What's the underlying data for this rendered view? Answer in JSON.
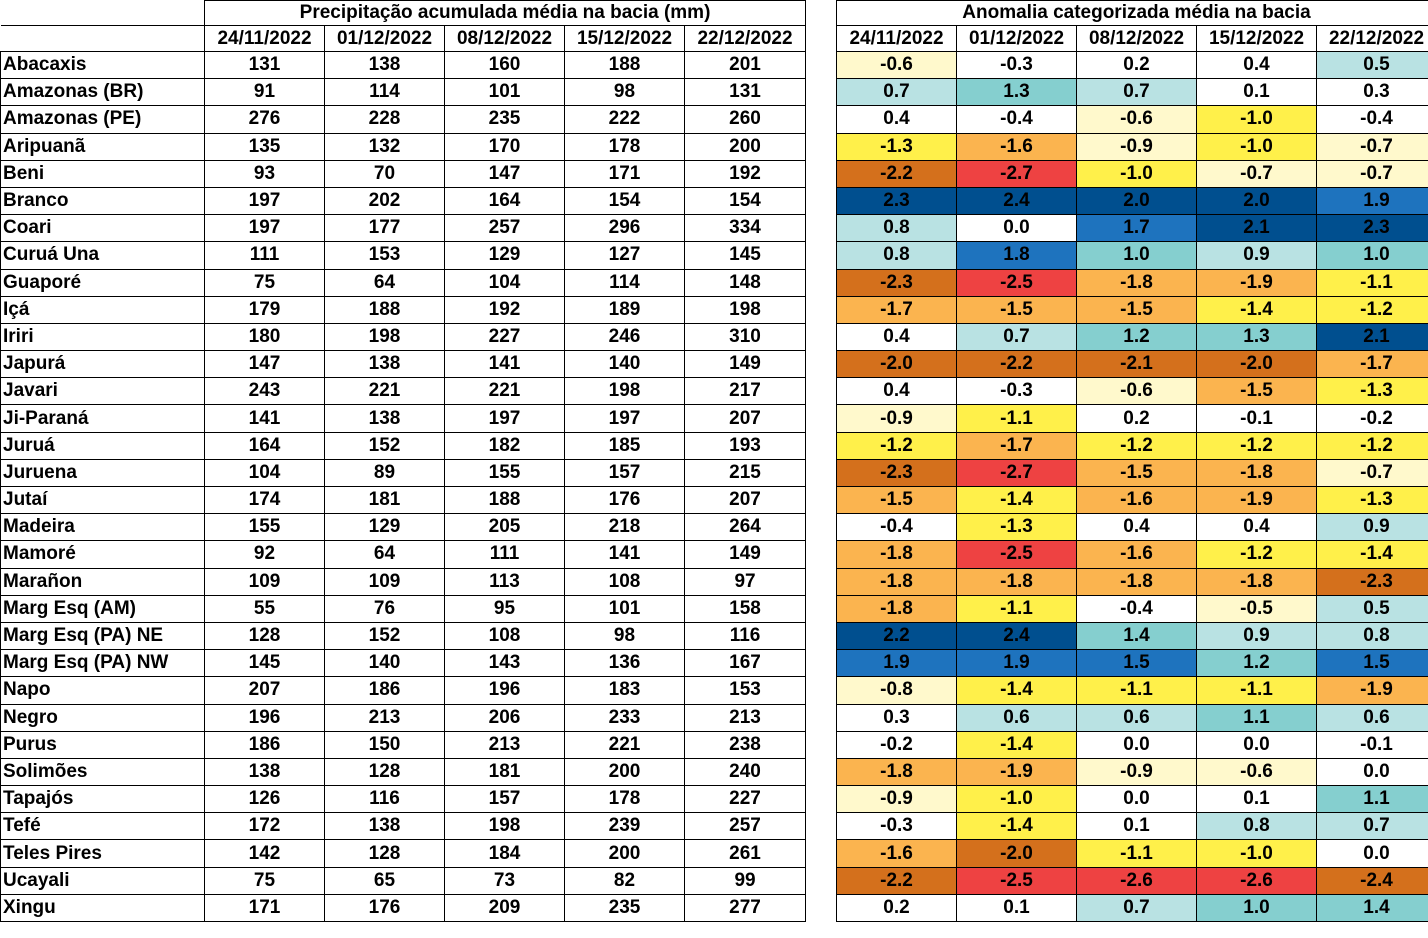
{
  "left_table": {
    "title": "Precipitação acumulada média na bacia (mm)",
    "dates": [
      "24/11/2022",
      "01/12/2022",
      "08/12/2022",
      "15/12/2022",
      "22/12/2022"
    ]
  },
  "right_table": {
    "title": "Anomalia categorizada média na bacia",
    "dates": [
      "24/11/2022",
      "01/12/2022",
      "08/12/2022",
      "15/12/2022",
      "22/12/2022"
    ]
  },
  "colors": {
    "W": "#FFFFFF",
    "PY": "#FFF9CC",
    "Y": "#FFF04A",
    "O": "#FBB44F",
    "DO": "#D4701C",
    "R": "#EE4242",
    "LC": "#B9E2E3",
    "T": "#85CFCF",
    "B": "#1E73BE",
    "DB": "#004F8F"
  },
  "rows": [
    {
      "name": "Abacaxis",
      "precip": [
        "131",
        "138",
        "160",
        "188",
        "201"
      ],
      "anom": [
        "-0.6",
        "-0.3",
        "0.2",
        "0.4",
        "0.5"
      ],
      "cat": [
        "PY",
        "W",
        "W",
        "W",
        "LC"
      ]
    },
    {
      "name": "Amazonas (BR)",
      "precip": [
        "91",
        "114",
        "101",
        "98",
        "131"
      ],
      "anom": [
        "0.7",
        "1.3",
        "0.7",
        "0.1",
        "0.3"
      ],
      "cat": [
        "LC",
        "T",
        "LC",
        "W",
        "W"
      ]
    },
    {
      "name": "Amazonas (PE)",
      "precip": [
        "276",
        "228",
        "235",
        "222",
        "260"
      ],
      "anom": [
        "0.4",
        "-0.4",
        "-0.6",
        "-1.0",
        "-0.4"
      ],
      "cat": [
        "W",
        "W",
        "PY",
        "Y",
        "W"
      ]
    },
    {
      "name": "Aripuanã",
      "precip": [
        "135",
        "132",
        "170",
        "178",
        "200"
      ],
      "anom": [
        "-1.3",
        "-1.6",
        "-0.9",
        "-1.0",
        "-0.7"
      ],
      "cat": [
        "Y",
        "O",
        "PY",
        "Y",
        "PY"
      ]
    },
    {
      "name": "Beni",
      "precip": [
        "93",
        "70",
        "147",
        "171",
        "192"
      ],
      "anom": [
        "-2.2",
        "-2.7",
        "-1.0",
        "-0.7",
        "-0.7"
      ],
      "cat": [
        "DO",
        "R",
        "Y",
        "PY",
        "PY"
      ]
    },
    {
      "name": "Branco",
      "precip": [
        "197",
        "202",
        "164",
        "154",
        "154"
      ],
      "anom": [
        "2.3",
        "2.4",
        "2.0",
        "2.0",
        "1.9"
      ],
      "cat": [
        "DB",
        "DB",
        "DB",
        "DB",
        "B"
      ]
    },
    {
      "name": "Coari",
      "precip": [
        "197",
        "177",
        "257",
        "296",
        "334"
      ],
      "anom": [
        "0.8",
        "0.0",
        "1.7",
        "2.1",
        "2.3"
      ],
      "cat": [
        "LC",
        "W",
        "B",
        "DB",
        "DB"
      ]
    },
    {
      "name": "Curuá Una",
      "precip": [
        "111",
        "153",
        "129",
        "127",
        "145"
      ],
      "anom": [
        "0.8",
        "1.8",
        "1.0",
        "0.9",
        "1.0"
      ],
      "cat": [
        "LC",
        "B",
        "T",
        "LC",
        "T"
      ]
    },
    {
      "name": "Guaporé",
      "precip": [
        "75",
        "64",
        "104",
        "114",
        "148"
      ],
      "anom": [
        "-2.3",
        "-2.5",
        "-1.8",
        "-1.9",
        "-1.1"
      ],
      "cat": [
        "DO",
        "R",
        "O",
        "O",
        "Y"
      ]
    },
    {
      "name": "Içá",
      "precip": [
        "179",
        "188",
        "192",
        "189",
        "198"
      ],
      "anom": [
        "-1.7",
        "-1.5",
        "-1.5",
        "-1.4",
        "-1.2"
      ],
      "cat": [
        "O",
        "O",
        "O",
        "Y",
        "Y"
      ]
    },
    {
      "name": "Iriri",
      "precip": [
        "180",
        "198",
        "227",
        "246",
        "310"
      ],
      "anom": [
        "0.4",
        "0.7",
        "1.2",
        "1.3",
        "2.1"
      ],
      "cat": [
        "W",
        "LC",
        "T",
        "T",
        "DB"
      ]
    },
    {
      "name": "Japurá",
      "precip": [
        "147",
        "138",
        "141",
        "140",
        "149"
      ],
      "anom": [
        "-2.0",
        "-2.2",
        "-2.1",
        "-2.0",
        "-1.7"
      ],
      "cat": [
        "DO",
        "DO",
        "DO",
        "DO",
        "O"
      ]
    },
    {
      "name": "Javari",
      "precip": [
        "243",
        "221",
        "221",
        "198",
        "217"
      ],
      "anom": [
        "0.4",
        "-0.3",
        "-0.6",
        "-1.5",
        "-1.3"
      ],
      "cat": [
        "W",
        "W",
        "PY",
        "O",
        "Y"
      ]
    },
    {
      "name": "Ji-Paraná",
      "precip": [
        "141",
        "138",
        "197",
        "197",
        "207"
      ],
      "anom": [
        "-0.9",
        "-1.1",
        "0.2",
        "-0.1",
        "-0.2"
      ],
      "cat": [
        "PY",
        "Y",
        "W",
        "W",
        "W"
      ]
    },
    {
      "name": "Juruá",
      "precip": [
        "164",
        "152",
        "182",
        "185",
        "193"
      ],
      "anom": [
        "-1.2",
        "-1.7",
        "-1.2",
        "-1.2",
        "-1.2"
      ],
      "cat": [
        "Y",
        "O",
        "Y",
        "Y",
        "Y"
      ]
    },
    {
      "name": "Juruena",
      "precip": [
        "104",
        "89",
        "155",
        "157",
        "215"
      ],
      "anom": [
        "-2.3",
        "-2.7",
        "-1.5",
        "-1.8",
        "-0.7"
      ],
      "cat": [
        "DO",
        "R",
        "O",
        "O",
        "PY"
      ]
    },
    {
      "name": "Jutaí",
      "precip": [
        "174",
        "181",
        "188",
        "176",
        "207"
      ],
      "anom": [
        "-1.5",
        "-1.4",
        "-1.6",
        "-1.9",
        "-1.3"
      ],
      "cat": [
        "O",
        "Y",
        "O",
        "O",
        "Y"
      ]
    },
    {
      "name": "Madeira",
      "precip": [
        "155",
        "129",
        "205",
        "218",
        "264"
      ],
      "anom": [
        "-0.4",
        "-1.3",
        "0.4",
        "0.4",
        "0.9"
      ],
      "cat": [
        "W",
        "Y",
        "W",
        "W",
        "LC"
      ]
    },
    {
      "name": "Mamoré",
      "precip": [
        "92",
        "64",
        "111",
        "141",
        "149"
      ],
      "anom": [
        "-1.8",
        "-2.5",
        "-1.6",
        "-1.2",
        "-1.4"
      ],
      "cat": [
        "O",
        "R",
        "O",
        "Y",
        "Y"
      ]
    },
    {
      "name": "Marañon",
      "precip": [
        "109",
        "109",
        "113",
        "108",
        "97"
      ],
      "anom": [
        "-1.8",
        "-1.8",
        "-1.8",
        "-1.8",
        "-2.3"
      ],
      "cat": [
        "O",
        "O",
        "O",
        "O",
        "DO"
      ]
    },
    {
      "name": "Marg Esq (AM)",
      "precip": [
        "55",
        "76",
        "95",
        "101",
        "158"
      ],
      "anom": [
        "-1.8",
        "-1.1",
        "-0.4",
        "-0.5",
        "0.5"
      ],
      "cat": [
        "O",
        "Y",
        "W",
        "PY",
        "LC"
      ]
    },
    {
      "name": "Marg Esq (PA) NE",
      "precip": [
        "128",
        "152",
        "108",
        "98",
        "116"
      ],
      "anom": [
        "2.2",
        "2.4",
        "1.4",
        "0.9",
        "0.8"
      ],
      "cat": [
        "DB",
        "DB",
        "T",
        "LC",
        "LC"
      ]
    },
    {
      "name": "Marg Esq (PA) NW",
      "precip": [
        "145",
        "140",
        "143",
        "136",
        "167"
      ],
      "anom": [
        "1.9",
        "1.9",
        "1.5",
        "1.2",
        "1.5"
      ],
      "cat": [
        "B",
        "B",
        "B",
        "T",
        "B"
      ]
    },
    {
      "name": "Napo",
      "precip": [
        "207",
        "186",
        "196",
        "183",
        "153"
      ],
      "anom": [
        "-0.8",
        "-1.4",
        "-1.1",
        "-1.1",
        "-1.9"
      ],
      "cat": [
        "PY",
        "Y",
        "Y",
        "Y",
        "O"
      ]
    },
    {
      "name": "Negro",
      "precip": [
        "196",
        "213",
        "206",
        "233",
        "213"
      ],
      "anom": [
        "0.3",
        "0.6",
        "0.6",
        "1.1",
        "0.6"
      ],
      "cat": [
        "W",
        "LC",
        "LC",
        "T",
        "LC"
      ]
    },
    {
      "name": "Purus",
      "precip": [
        "186",
        "150",
        "213",
        "221",
        "238"
      ],
      "anom": [
        "-0.2",
        "-1.4",
        "0.0",
        "0.0",
        "-0.1"
      ],
      "cat": [
        "W",
        "Y",
        "W",
        "W",
        "W"
      ]
    },
    {
      "name": "Solimões",
      "precip": [
        "138",
        "128",
        "181",
        "200",
        "240"
      ],
      "anom": [
        "-1.8",
        "-1.9",
        "-0.9",
        "-0.6",
        "0.0"
      ],
      "cat": [
        "O",
        "O",
        "PY",
        "PY",
        "W"
      ]
    },
    {
      "name": "Tapajós",
      "precip": [
        "126",
        "116",
        "157",
        "178",
        "227"
      ],
      "anom": [
        "-0.9",
        "-1.0",
        "0.0",
        "0.1",
        "1.1"
      ],
      "cat": [
        "PY",
        "Y",
        "W",
        "W",
        "T"
      ]
    },
    {
      "name": "Tefé",
      "precip": [
        "172",
        "138",
        "198",
        "239",
        "257"
      ],
      "anom": [
        "-0.3",
        "-1.4",
        "0.1",
        "0.8",
        "0.7"
      ],
      "cat": [
        "W",
        "Y",
        "W",
        "LC",
        "LC"
      ]
    },
    {
      "name": "Teles Pires",
      "precip": [
        "142",
        "128",
        "184",
        "200",
        "261"
      ],
      "anom": [
        "-1.6",
        "-2.0",
        "-1.1",
        "-1.0",
        "0.0"
      ],
      "cat": [
        "O",
        "DO",
        "Y",
        "Y",
        "W"
      ]
    },
    {
      "name": "Ucayali",
      "precip": [
        "75",
        "65",
        "73",
        "82",
        "99"
      ],
      "anom": [
        "-2.2",
        "-2.5",
        "-2.6",
        "-2.6",
        "-2.4"
      ],
      "cat": [
        "DO",
        "R",
        "R",
        "R",
        "DO"
      ]
    },
    {
      "name": "Xingu",
      "precip": [
        "171",
        "176",
        "209",
        "235",
        "277"
      ],
      "anom": [
        "0.2",
        "0.1",
        "0.7",
        "1.0",
        "1.4"
      ],
      "cat": [
        "W",
        "W",
        "LC",
        "T",
        "T"
      ]
    }
  ]
}
